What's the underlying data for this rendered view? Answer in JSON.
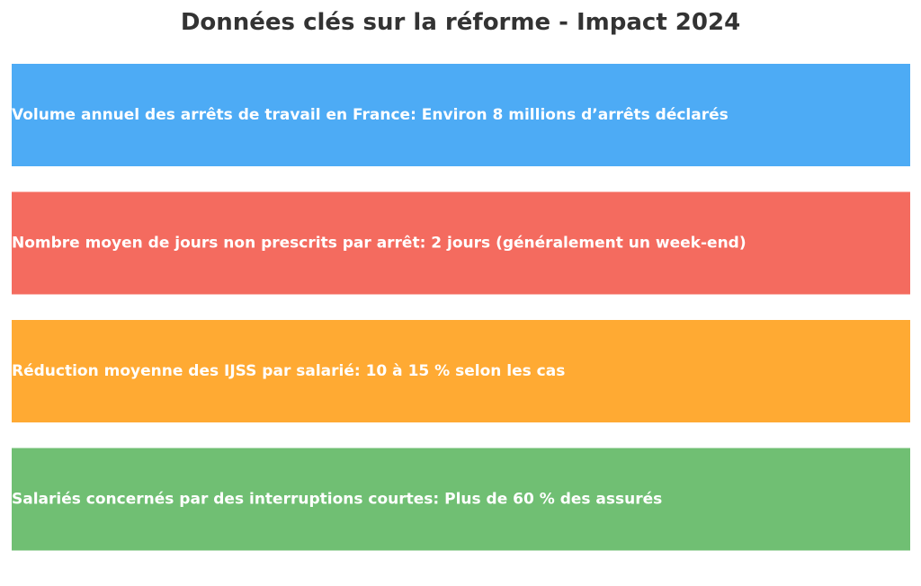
{
  "title": "Données clés sur la réforme - Impact 2024",
  "chart_data": {
    "type": "bar",
    "title": "Données clés sur la réforme - Impact 2024",
    "orientation": "horizontal",
    "grid": false,
    "legend": "none",
    "bars": [
      {
        "label": "Volume annuel des arrêts de travail en France: Environ 8 millions d’arrêts déclarés",
        "color": "#4dabf5"
      },
      {
        "label": "Nombre moyen de jours non prescrits par arrêt: 2 jours (généralement un week-end)",
        "color": "#f46b5f"
      },
      {
        "label": "Réduction moyenne des IJSS par salarié: 10 à 15 % selon les cas",
        "color": "#ffaa33"
      },
      {
        "label": "Salariés concernés par des interruptions courtes: Plus de 60 % des assurés",
        "color": "#70bf73"
      }
    ]
  }
}
